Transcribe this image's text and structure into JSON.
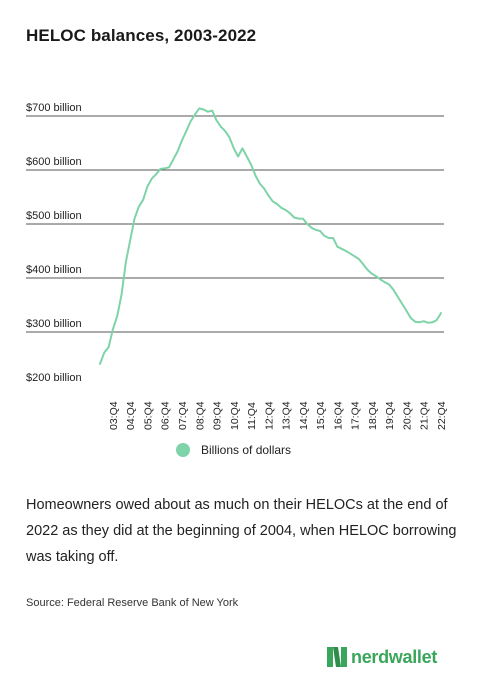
{
  "title": "HELOC balances, 2003-2022",
  "caption": "Homeowners owed about as much on their HELOCs at the end of 2022 as they did at the beginning of 2004, when HELOC borrowing was taking off.",
  "source": "Source: Federal Reserve Bank of New York",
  "brand": "nerdwallet",
  "colors": {
    "series": "#7fd3a8",
    "grid": "#555555",
    "brand": "#3aa65b"
  },
  "chart_data": {
    "type": "line",
    "title": "HELOC balances, 2003-2022",
    "xlabel": "",
    "ylabel": "",
    "ylim": [
      200,
      700
    ],
    "yticks": [
      200,
      300,
      400,
      500,
      600,
      700
    ],
    "ytick_labels": [
      "$200 billion",
      "$300 billion",
      "$400 billion",
      "$500 billion",
      "$600 billion",
      "$700 billion"
    ],
    "xtick_labels": [
      "03:Q4",
      "04:Q4",
      "05:Q4",
      "06:Q4",
      "07:Q4",
      "08:Q4",
      "09:Q4",
      "10:Q4",
      "11:Q4",
      "12:Q4",
      "13:Q4",
      "14:Q4",
      "15:Q4",
      "16:Q4",
      "17:Q4",
      "18:Q4",
      "19:Q4",
      "20:Q4",
      "21:Q4",
      "22:Q4"
    ],
    "legend": "bottom-center",
    "grid": true,
    "series": [
      {
        "name": "Billions of dollars",
        "x": [
          "03:Q1",
          "03:Q2",
          "03:Q3",
          "03:Q4",
          "04:Q1",
          "04:Q2",
          "04:Q3",
          "04:Q4",
          "05:Q1",
          "05:Q2",
          "05:Q3",
          "05:Q4",
          "06:Q1",
          "06:Q2",
          "06:Q3",
          "06:Q4",
          "07:Q1",
          "07:Q2",
          "07:Q3",
          "07:Q4",
          "08:Q1",
          "08:Q2",
          "08:Q3",
          "08:Q4",
          "09:Q1",
          "09:Q2",
          "09:Q3",
          "09:Q4",
          "10:Q1",
          "10:Q2",
          "10:Q3",
          "10:Q4",
          "11:Q1",
          "11:Q2",
          "11:Q3",
          "11:Q4",
          "12:Q1",
          "12:Q2",
          "12:Q3",
          "12:Q4",
          "13:Q1",
          "13:Q2",
          "13:Q3",
          "13:Q4",
          "14:Q1",
          "14:Q2",
          "14:Q3",
          "14:Q4",
          "15:Q1",
          "15:Q2",
          "15:Q3",
          "15:Q4",
          "16:Q1",
          "16:Q2",
          "16:Q3",
          "16:Q4",
          "17:Q1",
          "17:Q2",
          "17:Q3",
          "17:Q4",
          "18:Q1",
          "18:Q2",
          "18:Q3",
          "18:Q4",
          "19:Q1",
          "19:Q2",
          "19:Q3",
          "19:Q4",
          "20:Q1",
          "20:Q2",
          "20:Q3",
          "20:Q4",
          "21:Q1",
          "21:Q2",
          "21:Q3",
          "21:Q4",
          "22:Q1",
          "22:Q2",
          "22:Q3",
          "22:Q4"
        ],
        "values": [
          241,
          262,
          272,
          305,
          330,
          370,
          430,
          470,
          510,
          532,
          545,
          570,
          584,
          592,
          602,
          603,
          605,
          620,
          635,
          655,
          672,
          690,
          703,
          714,
          712,
          708,
          710,
          692,
          680,
          672,
          660,
          640,
          625,
          640,
          625,
          610,
          590,
          575,
          566,
          553,
          542,
          537,
          530,
          526,
          520,
          512,
          510,
          510,
          500,
          493,
          489,
          487,
          478,
          474,
          474,
          458,
          454,
          450,
          445,
          440,
          435,
          425,
          415,
          408,
          403,
          397,
          392,
          388,
          378,
          365,
          352,
          339,
          326,
          319,
          318,
          320,
          317,
          318,
          322,
          335
        ]
      }
    ]
  }
}
